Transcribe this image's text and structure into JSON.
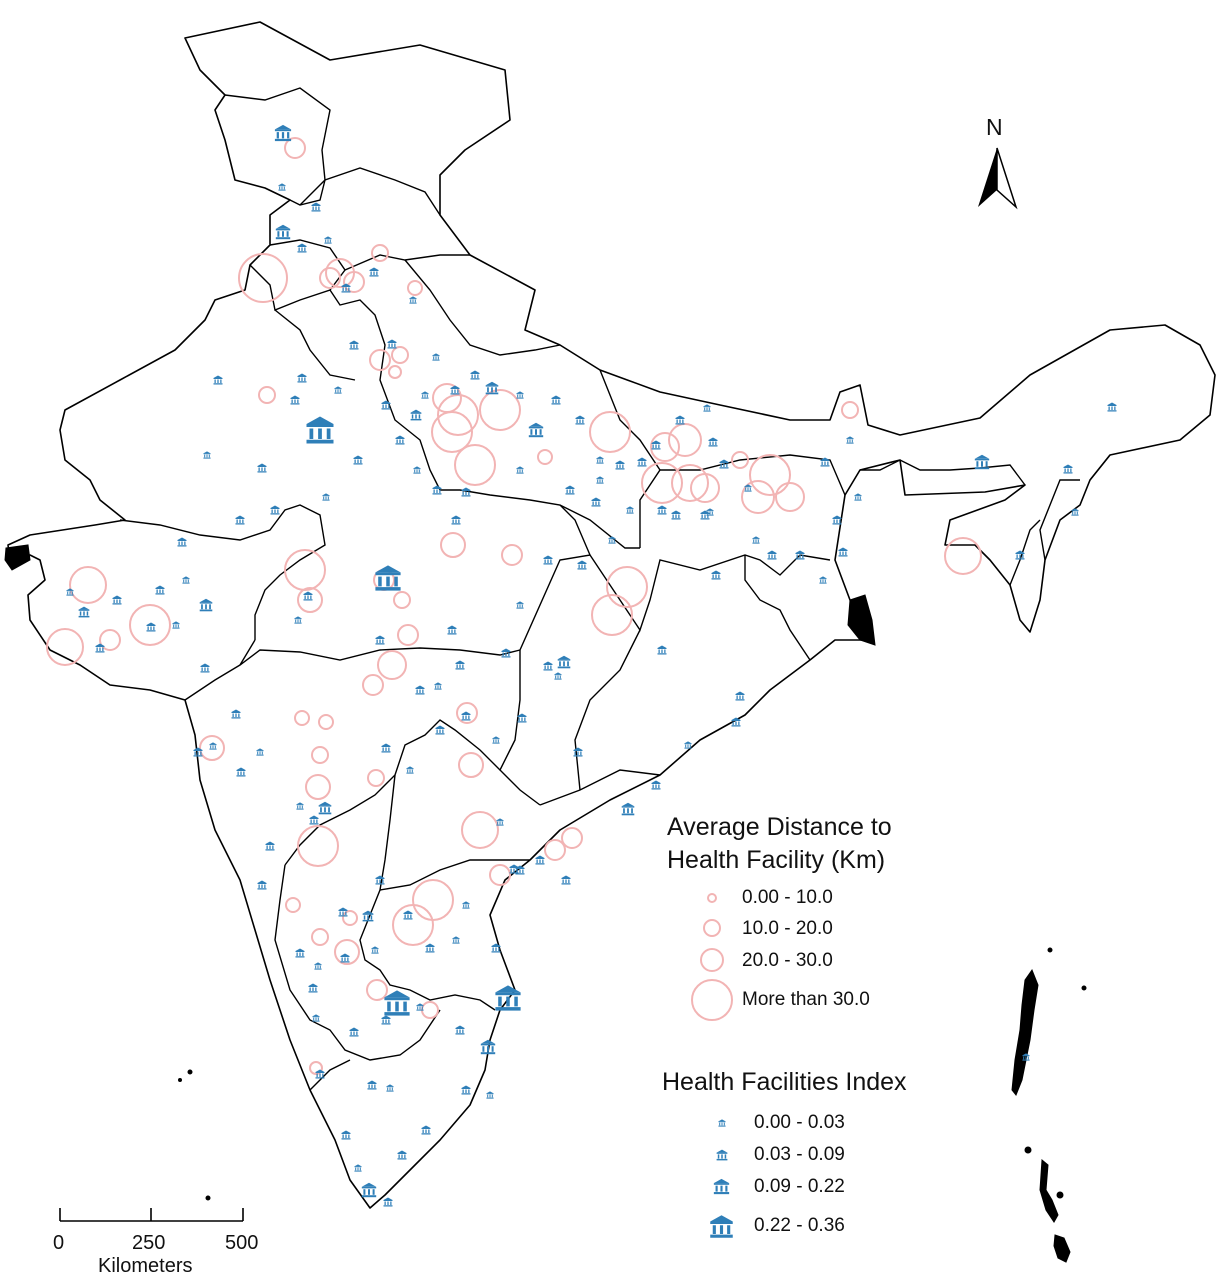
{
  "north_arrow": {
    "label": "N"
  },
  "distance_legend": {
    "title_line1": "Average Distance to",
    "title_line2": "Health Facility (Km)",
    "items": [
      "0.00 - 10.0",
      "10.0 - 20.0",
      "20.0 - 30.0",
      "More than 30.0"
    ],
    "circle_color": "#f2b4b4"
  },
  "facility_legend": {
    "title": "Health Facilities Index",
    "items": [
      "0.00 - 0.03",
      "0.03 - 0.09",
      "0.09 - 0.22",
      "0.22 - 0.36"
    ],
    "icon": "government-building-icon",
    "icon_color": "#2f7fb8"
  },
  "scale_bar": {
    "ticks": [
      "0",
      "250",
      "500"
    ],
    "unit": "Kilometers"
  }
}
